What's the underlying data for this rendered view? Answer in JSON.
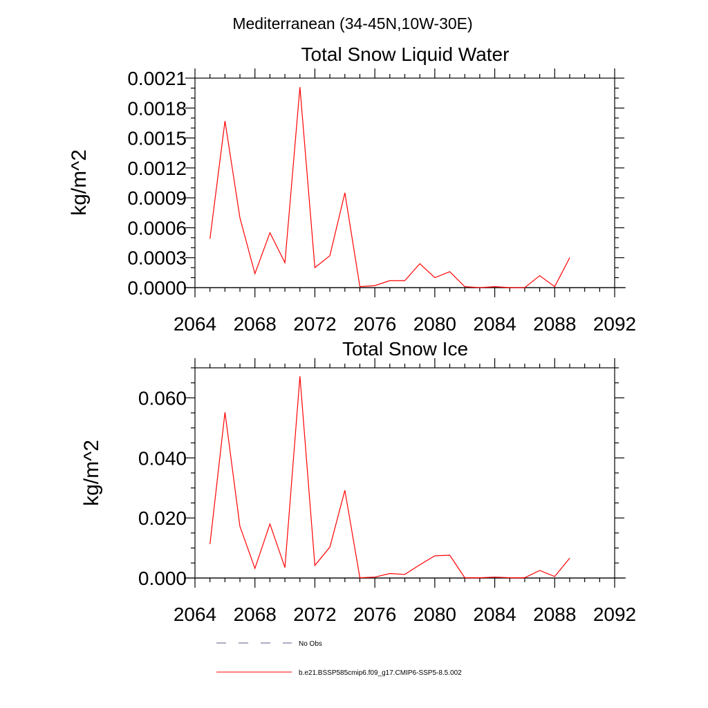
{
  "suptitle": "Mediterranean (34-45N,10W-30E)",
  "chart_data": [
    {
      "type": "line",
      "title": "Total Snow Liquid Water",
      "xlabel": "",
      "ylabel": "kg/m^2",
      "xlim": [
        2064,
        2092
      ],
      "ylim": [
        0,
        0.0021
      ],
      "xticks": [
        "2064",
        "2068",
        "2072",
        "2076",
        "2080",
        "2084",
        "2088",
        "2092"
      ],
      "yticks": [
        "0.0000",
        "0.0003",
        "0.0006",
        "0.0009",
        "0.0012",
        "0.0015",
        "0.0018",
        "0.0021"
      ],
      "grid": false,
      "series": [
        {
          "name": "b.e21.BSSP585cmip6.f09_g17.CMIP6-SSP5-8.5.002",
          "color": "#ff0000",
          "x": [
            2065,
            2066,
            2067,
            2068,
            2069,
            2070,
            2071,
            2072,
            2073,
            2074,
            2075,
            2076,
            2077,
            2078,
            2079,
            2080,
            2081,
            2082,
            2083,
            2084,
            2085,
            2086,
            2087,
            2088,
            2089
          ],
          "y": [
            0.00049,
            0.00167,
            0.0007,
            0.00014,
            0.00055,
            0.00025,
            0.00201,
            0.0002,
            0.00032,
            0.00095,
            1e-05,
            2e-05,
            7e-05,
            7e-05,
            0.00024,
            0.0001,
            0.00016,
            1e-05,
            0.0,
            1e-05,
            0.0,
            0.0,
            0.00012,
            1e-05,
            0.0003
          ]
        }
      ]
    },
    {
      "type": "line",
      "title": "Total Snow Ice",
      "xlabel": "",
      "ylabel": "kg/m^2",
      "xlim": [
        2064,
        2092
      ],
      "ylim": [
        0,
        0.07
      ],
      "xticks": [
        "2064",
        "2068",
        "2072",
        "2076",
        "2080",
        "2084",
        "2088",
        "2092"
      ],
      "yticks": [
        "0.000",
        "0.020",
        "0.040",
        "0.060"
      ],
      "ytick_values": [
        0,
        0.02,
        0.04,
        0.06
      ],
      "grid": false,
      "series": [
        {
          "name": "b.e21.BSSP585cmip6.f09_g17.CMIP6-SSP5-8.5.002",
          "color": "#ff0000",
          "x": [
            2065,
            2066,
            2067,
            2068,
            2069,
            2070,
            2071,
            2072,
            2073,
            2074,
            2075,
            2076,
            2077,
            2078,
            2079,
            2080,
            2081,
            2082,
            2083,
            2084,
            2085,
            2086,
            2087,
            2088,
            2089
          ],
          "y": [
            0.0113,
            0.0552,
            0.0172,
            0.0032,
            0.018,
            0.0035,
            0.0672,
            0.0042,
            0.0103,
            0.0292,
            0.0001,
            0.0003,
            0.0015,
            0.0012,
            0.0044,
            0.0074,
            0.0076,
            0.0001,
            0.0001,
            0.0003,
            0.0001,
            0.0001,
            0.0025,
            0.0005,
            0.0066
          ]
        }
      ]
    }
  ],
  "legend": {
    "placement": "bottom",
    "items": [
      {
        "label": "No Obs",
        "color": "#5a5a8a",
        "style": "dashed"
      },
      {
        "label": "b.e21.BSSP585cmip6.f09_g17.CMIP6-SSP5-8.5.002",
        "color": "#ff0000",
        "style": "solid"
      }
    ]
  }
}
